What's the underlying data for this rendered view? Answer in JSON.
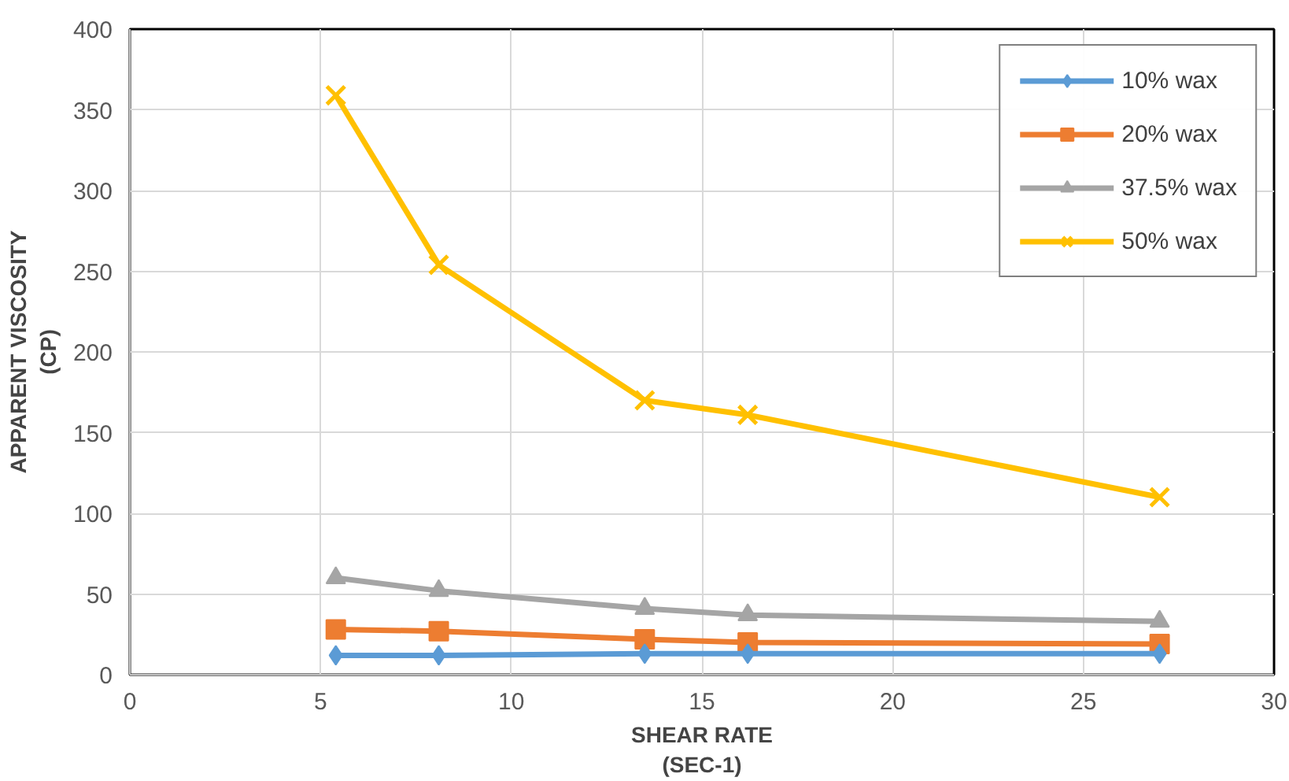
{
  "chart_data": {
    "type": "line",
    "xlabel": "SHEAR RATE\n(SEC-1)",
    "ylabel": "APPARENT VISCOSITY\n(CP)",
    "x": [
      5.4,
      8.1,
      13.5,
      16.2,
      27.0
    ],
    "series": [
      {
        "name": "10% wax",
        "color": "#5b9bd5",
        "marker": "diamond",
        "values": [
          12,
          12,
          13,
          13,
          13
        ]
      },
      {
        "name": "20% wax",
        "color": "#ed7d31",
        "marker": "square",
        "values": [
          28,
          27,
          22,
          20,
          19
        ]
      },
      {
        "name": "37.5% wax",
        "color": "#a5a5a5",
        "marker": "triangle",
        "values": [
          60,
          52,
          41,
          37,
          33
        ]
      },
      {
        "name": "50% wax",
        "color": "#ffc000",
        "marker": "cross",
        "values": [
          359,
          254,
          170,
          161,
          110
        ]
      }
    ],
    "xlim": [
      0,
      30
    ],
    "xticks": [
      0,
      5,
      10,
      15,
      20,
      25,
      30
    ],
    "ylim": [
      0,
      400
    ],
    "yticks": [
      0,
      50,
      100,
      150,
      200,
      250,
      300,
      350,
      400
    ],
    "grid": true,
    "legend": "top right",
    "line_style": "solid"
  }
}
